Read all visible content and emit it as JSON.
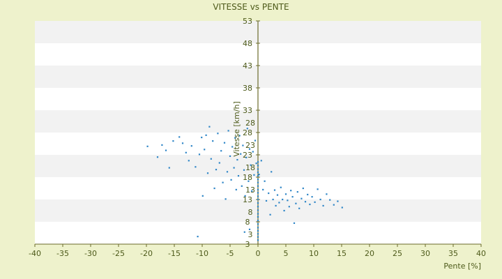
{
  "chart_data": {
    "type": "scatter",
    "title": "VITESSE vs PENTE",
    "xlabel": "Pente [%]",
    "ylabel": "Vitesse [km/h]",
    "xlim": [
      -40,
      40
    ],
    "ylim": [
      3,
      53
    ],
    "x_ticks": [
      -40,
      -35,
      -30,
      -25,
      -20,
      -15,
      -10,
      -5,
      0,
      5,
      10,
      15,
      20,
      25,
      30,
      35,
      40
    ],
    "y_ticks": [
      3,
      8,
      13,
      18,
      23,
      28,
      33,
      38,
      43,
      48,
      53
    ],
    "y_inner_ticks": [
      3,
      8,
      13,
      18,
      23,
      28
    ],
    "grid": "horizontal-bands",
    "legend": "none",
    "colors": {
      "background": "#eef2cc",
      "band_light": "#ffffff",
      "band_dark": "#f2f2f2",
      "marker": "#2f86c7",
      "axis": "#6b6b2a",
      "text": "#4d5a1a"
    },
    "series": [
      {
        "points": [
          [
            -19.8,
            24.9
          ],
          [
            -18.0,
            22.5
          ],
          [
            -17.2,
            25.2
          ],
          [
            -16.5,
            24.0
          ],
          [
            -15.9,
            20.1
          ],
          [
            -15.2,
            26.1
          ],
          [
            -14.1,
            27.0
          ],
          [
            -13.5,
            25.6
          ],
          [
            -12.9,
            23.5
          ],
          [
            -12.4,
            21.7
          ],
          [
            -11.9,
            25.0
          ],
          [
            -11.2,
            20.3
          ],
          [
            -10.8,
            4.7
          ],
          [
            -10.5,
            23.1
          ],
          [
            -10.1,
            26.9
          ],
          [
            -9.9,
            13.8
          ],
          [
            -9.6,
            24.2
          ],
          [
            -9.3,
            27.4
          ],
          [
            -9.0,
            18.9
          ],
          [
            -8.7,
            29.3
          ],
          [
            -8.4,
            22.1
          ],
          [
            -8.1,
            26.1
          ],
          [
            -7.8,
            15.5
          ],
          [
            -7.5,
            19.7
          ],
          [
            -7.2,
            27.8
          ],
          [
            -6.9,
            21.2
          ],
          [
            -6.6,
            23.9
          ],
          [
            -6.3,
            16.8
          ],
          [
            -6.0,
            25.7
          ],
          [
            -5.8,
            13.1
          ],
          [
            -5.5,
            19.2
          ],
          [
            -5.3,
            28.4
          ],
          [
            -5.0,
            22.7
          ],
          [
            -4.8,
            17.4
          ],
          [
            -4.6,
            24.8
          ],
          [
            -4.3,
            20.1
          ],
          [
            -4.1,
            26.8
          ],
          [
            -3.9,
            15.2
          ],
          [
            -3.7,
            21.9
          ],
          [
            -3.5,
            18.3
          ],
          [
            -3.3,
            27.3
          ],
          [
            -3.1,
            23.2
          ],
          [
            -2.9,
            16.0
          ],
          [
            -2.7,
            25.1
          ],
          [
            -2.5,
            19.6
          ],
          [
            -2.3,
            13.8
          ],
          [
            -2.1,
            22.4
          ],
          [
            -1.9,
            28.9
          ],
          [
            -1.7,
            17.1
          ],
          [
            -1.5,
            24.3
          ],
          [
            -1.3,
            20.7
          ],
          [
            -1.1,
            14.9
          ],
          [
            -0.9,
            23.7
          ],
          [
            -0.7,
            18.5
          ],
          [
            -0.5,
            26.2
          ],
          [
            -0.3,
            21.1
          ],
          [
            -2.4,
            5.7
          ],
          [
            -1.5,
            6.3
          ],
          [
            0.2,
            18.6
          ],
          [
            0.6,
            21.7
          ],
          [
            0.9,
            15.2
          ],
          [
            1.2,
            17.1
          ],
          [
            1.5,
            12.7
          ],
          [
            1.9,
            14.4
          ],
          [
            2.2,
            9.6
          ],
          [
            2.4,
            19.2
          ],
          [
            2.7,
            13.0
          ],
          [
            3.0,
            15.1
          ],
          [
            3.2,
            11.6
          ],
          [
            3.5,
            14.0
          ],
          [
            3.8,
            12.3
          ],
          [
            4.1,
            15.7
          ],
          [
            4.4,
            13.0
          ],
          [
            4.7,
            10.5
          ],
          [
            5.0,
            14.2
          ],
          [
            5.3,
            12.8
          ],
          [
            5.6,
            11.4
          ],
          [
            5.9,
            15.0
          ],
          [
            6.2,
            13.6
          ],
          [
            6.5,
            7.7
          ],
          [
            6.8,
            12.1
          ],
          [
            7.1,
            14.7
          ],
          [
            7.4,
            11.0
          ],
          [
            7.8,
            13.2
          ],
          [
            8.1,
            15.5
          ],
          [
            8.5,
            12.5
          ],
          [
            8.9,
            14.1
          ],
          [
            9.3,
            11.9
          ],
          [
            9.7,
            13.6
          ],
          [
            10.2,
            12.4
          ],
          [
            10.7,
            15.3
          ],
          [
            11.2,
            13.0
          ],
          [
            11.7,
            11.6
          ],
          [
            12.3,
            14.2
          ],
          [
            12.9,
            12.9
          ],
          [
            13.6,
            11.8
          ],
          [
            14.3,
            12.6
          ],
          [
            15.1,
            11.2
          ]
        ]
      },
      {
        "points": [
          [
            0,
            21.4
          ],
          [
            0,
            20.6
          ],
          [
            0,
            19.8
          ],
          [
            0,
            19.1
          ],
          [
            0,
            18.3
          ],
          [
            0,
            17.5
          ],
          [
            0,
            16.8
          ],
          [
            0,
            16.0
          ],
          [
            0,
            15.2
          ],
          [
            0,
            14.5
          ],
          [
            0,
            13.7
          ],
          [
            0,
            13.0
          ],
          [
            0,
            12.2
          ],
          [
            0,
            11.4
          ],
          [
            0,
            10.6
          ],
          [
            0,
            9.8
          ],
          [
            0,
            9.1
          ],
          [
            0,
            8.3
          ],
          [
            0,
            7.5
          ],
          [
            0,
            6.7
          ],
          [
            0,
            6.0
          ],
          [
            0,
            5.3
          ],
          [
            0,
            4.6
          ],
          [
            0,
            3.9
          ]
        ]
      }
    ]
  }
}
